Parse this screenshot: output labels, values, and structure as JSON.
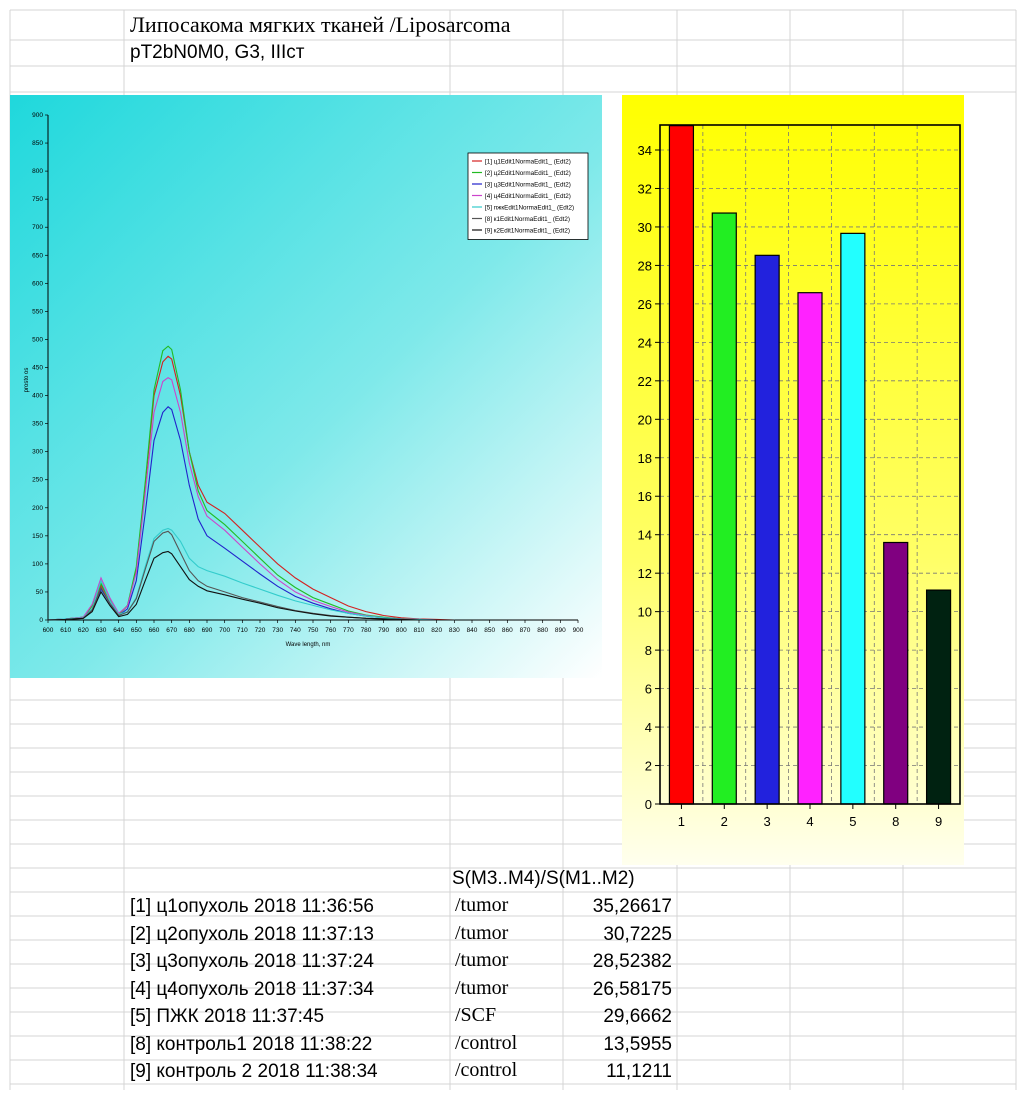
{
  "sheet_title": "Липосакома мягких тканей /Liposarcoma",
  "sheet_subtitle": "pT2bN0M0,  G3,  IIIст",
  "table_header": "S(M3..M4)/S(M1..M2)",
  "table_rows": [
    {
      "label": "[1]  ц1опухоль 2018 11:36:56",
      "class": "/tumor",
      "value": "35,26617"
    },
    {
      "label": "[2]  ц2опухоль 2018 11:37:13",
      "class": "/tumor",
      "value": "30,7225"
    },
    {
      "label": "[3]  ц3опухоль 2018 11:37:24",
      "class": "/tumor",
      "value": "28,52382"
    },
    {
      "label": "[4]  ц4опухоль 2018 11:37:34",
      "class": "/tumor",
      "value": "26,58175"
    },
    {
      "label": "[5]  ПЖК    2018 11:37:45",
      "class": "/SCF",
      "value": "29,6662"
    },
    {
      "label": "[8]  контроль1 2018 11:38:22",
      "class": "/control",
      "value": "13,5955"
    },
    {
      "label": "[9]  контроль 2 2018 11:38:34",
      "class": "/control",
      "value": "11,1211"
    }
  ],
  "chart_data": [
    {
      "type": "line",
      "xlabel": "Wave length, nm",
      "ylabel": "prosto os",
      "xlim": [
        600,
        900
      ],
      "ylim": [
        0,
        900
      ],
      "x_ticks": [
        600,
        610,
        620,
        630,
        640,
        650,
        660,
        670,
        680,
        690,
        700,
        710,
        720,
        730,
        740,
        750,
        760,
        770,
        780,
        790,
        800,
        810,
        820,
        830,
        840,
        850,
        860,
        870,
        880,
        890,
        900
      ],
      "y_ticks": [
        0,
        50,
        100,
        150,
        200,
        250,
        300,
        350,
        400,
        450,
        500,
        550,
        600,
        650,
        700,
        750,
        800,
        850,
        900
      ],
      "legend_position": "top-right",
      "x": [
        600,
        610,
        620,
        625,
        630,
        635,
        640,
        645,
        650,
        655,
        660,
        665,
        668,
        670,
        675,
        680,
        685,
        690,
        700,
        710,
        720,
        730,
        740,
        750,
        760,
        770,
        780,
        790,
        800,
        810,
        820,
        830
      ],
      "series": [
        {
          "name": "[1] ц1Edit1NormaEdit1_ (Edt2)",
          "color": "#d42020",
          "values": [
            0,
            2,
            5,
            25,
            62,
            35,
            10,
            25,
            90,
            240,
            400,
            460,
            470,
            465,
            400,
            300,
            240,
            210,
            190,
            160,
            130,
            100,
            75,
            55,
            40,
            25,
            15,
            8,
            4,
            2,
            1,
            0
          ]
        },
        {
          "name": "[2] ц2Edit1NormaEdit1_ (Edt2)",
          "color": "#22bb22",
          "values": [
            0,
            2,
            5,
            25,
            65,
            36,
            10,
            26,
            95,
            245,
            410,
            480,
            488,
            482,
            410,
            300,
            230,
            195,
            170,
            140,
            110,
            80,
            58,
            40,
            28,
            16,
            9,
            5,
            2,
            1,
            0,
            0
          ]
        },
        {
          "name": "[3] ц3Edit1NormaEdit1_ (Edt2)",
          "color": "#2222cc",
          "values": [
            0,
            2,
            4,
            20,
            55,
            30,
            8,
            20,
            70,
            190,
            320,
            370,
            380,
            375,
            320,
            240,
            180,
            150,
            128,
            105,
            82,
            60,
            42,
            30,
            20,
            12,
            7,
            4,
            2,
            1,
            0,
            0
          ]
        },
        {
          "name": "[4] ц4Edit1NormaEdit1_ (Edt2)",
          "color": "#cc44cc",
          "values": [
            0,
            2,
            5,
            28,
            75,
            40,
            12,
            25,
            85,
            225,
            370,
            425,
            432,
            428,
            370,
            280,
            220,
            185,
            160,
            130,
            100,
            72,
            50,
            35,
            24,
            14,
            8,
            4,
            2,
            1,
            0,
            0
          ]
        },
        {
          "name": "[5] пжкEdit1NormaEdit1_ (Edt2)",
          "color": "#33cccc",
          "values": [
            0,
            2,
            4,
            20,
            70,
            35,
            10,
            15,
            40,
            95,
            145,
            160,
            163,
            160,
            140,
            110,
            95,
            88,
            78,
            66,
            55,
            44,
            34,
            26,
            18,
            12,
            7,
            4,
            2,
            1,
            0,
            0
          ]
        },
        {
          "name": "[8] к1Edit1NormaEdit1_ (Edt2)",
          "color": "#555555",
          "values": [
            0,
            1,
            3,
            18,
            58,
            30,
            8,
            14,
            38,
            90,
            140,
            155,
            158,
            152,
            120,
            88,
            70,
            60,
            50,
            40,
            32,
            24,
            17,
            12,
            8,
            5,
            3,
            2,
            1,
            0,
            0,
            0
          ]
        },
        {
          "name": "[9] к2Edit1NormaEdit1_ (Edt2)",
          "color": "#111111",
          "values": [
            0,
            1,
            3,
            15,
            50,
            26,
            6,
            10,
            28,
            70,
            110,
            120,
            122,
            118,
            95,
            72,
            60,
            52,
            45,
            37,
            30,
            22,
            16,
            11,
            7,
            5,
            3,
            2,
            1,
            0,
            0,
            0
          ]
        }
      ]
    },
    {
      "type": "bar",
      "categories": [
        "1",
        "2",
        "3",
        "4",
        "5",
        "8",
        "9"
      ],
      "values": [
        35.26617,
        30.7225,
        28.52382,
        26.58175,
        29.6662,
        13.5955,
        11.1211
      ],
      "colors": [
        "#ff0000",
        "#22ee22",
        "#2222dd",
        "#ff22ff",
        "#22ffff",
        "#800080",
        "#002211"
      ],
      "ylim": [
        0,
        35.3
      ],
      "y_ticks": [
        0,
        2,
        4,
        6,
        8,
        10,
        12,
        14,
        16,
        18,
        20,
        22,
        24,
        26,
        28,
        30,
        32,
        34
      ],
      "grid": true
    }
  ]
}
